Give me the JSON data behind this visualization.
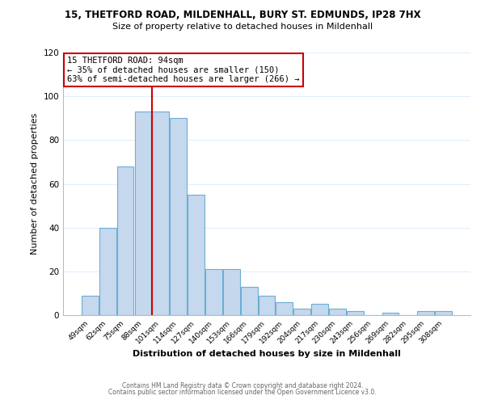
{
  "title1": "15, THETFORD ROAD, MILDENHALL, BURY ST. EDMUNDS, IP28 7HX",
  "title2": "Size of property relative to detached houses in Mildenhall",
  "xlabel": "Distribution of detached houses by size in Mildenhall",
  "ylabel": "Number of detached properties",
  "bar_labels": [
    "49sqm",
    "62sqm",
    "75sqm",
    "88sqm",
    "101sqm",
    "114sqm",
    "127sqm",
    "140sqm",
    "153sqm",
    "166sqm",
    "179sqm",
    "192sqm",
    "204sqm",
    "217sqm",
    "230sqm",
    "243sqm",
    "256sqm",
    "269sqm",
    "282sqm",
    "295sqm",
    "308sqm"
  ],
  "bar_values": [
    9,
    40,
    68,
    93,
    93,
    90,
    55,
    21,
    21,
    13,
    9,
    6,
    3,
    5,
    3,
    2,
    0,
    1,
    0,
    2,
    2
  ],
  "bar_color": "#c5d8ed",
  "bar_edge_color": "#6baed6",
  "vline_x": 3.5,
  "vline_color": "#cc0000",
  "annotation_line1": "15 THETFORD ROAD: 94sqm",
  "annotation_line2": "← 35% of detached houses are smaller (150)",
  "annotation_line3": "63% of semi-detached houses are larger (266) →",
  "annotation_box_edge_color": "#cc0000",
  "ylim": [
    0,
    120
  ],
  "yticks": [
    0,
    20,
    40,
    60,
    80,
    100,
    120
  ],
  "footer1": "Contains HM Land Registry data © Crown copyright and database right 2024.",
  "footer2": "Contains public sector information licensed under the Open Government Licence v3.0.",
  "background_color": "#ffffff",
  "grid_color": "#ddeeff"
}
